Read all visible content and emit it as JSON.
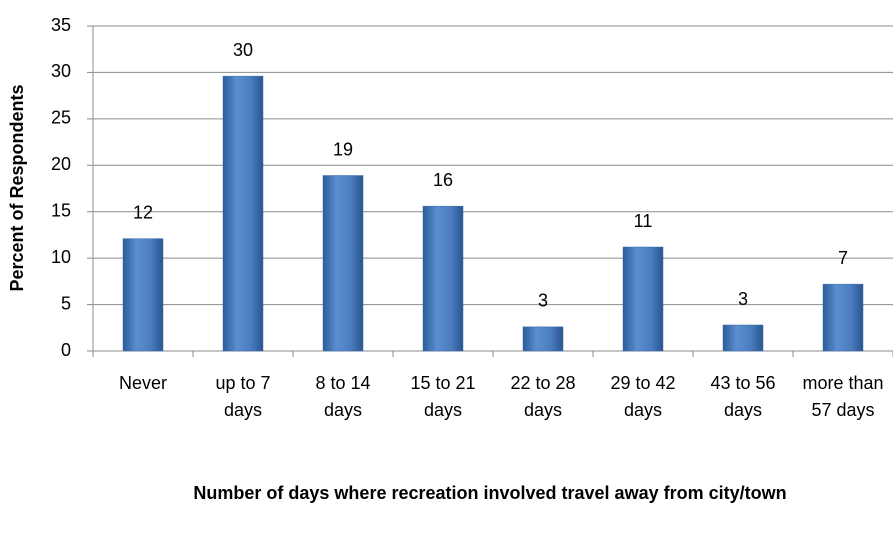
{
  "chart_data": {
    "type": "bar",
    "categories": [
      "Never",
      "up to 7 days",
      "8 to 14 days",
      "15 to 21 days",
      "22 to 28 days",
      "29 to 42 days",
      "43 to 56 days",
      "more than 57 days"
    ],
    "values": [
      12.1,
      29.6,
      18.9,
      15.6,
      2.6,
      11.2,
      2.8,
      7.2
    ],
    "value_labels": [
      "12",
      "30",
      "19",
      "16",
      "3",
      "11",
      "3",
      "7"
    ],
    "color": "#4f81bd",
    "ylim": [
      0,
      35
    ],
    "yticks": [
      0,
      5,
      10,
      15,
      20,
      25,
      30,
      35
    ],
    "grid": true,
    "ylabel": "Percent of Respondents",
    "xlabel": "Number of days where recreation involved travel away from city/town"
  }
}
